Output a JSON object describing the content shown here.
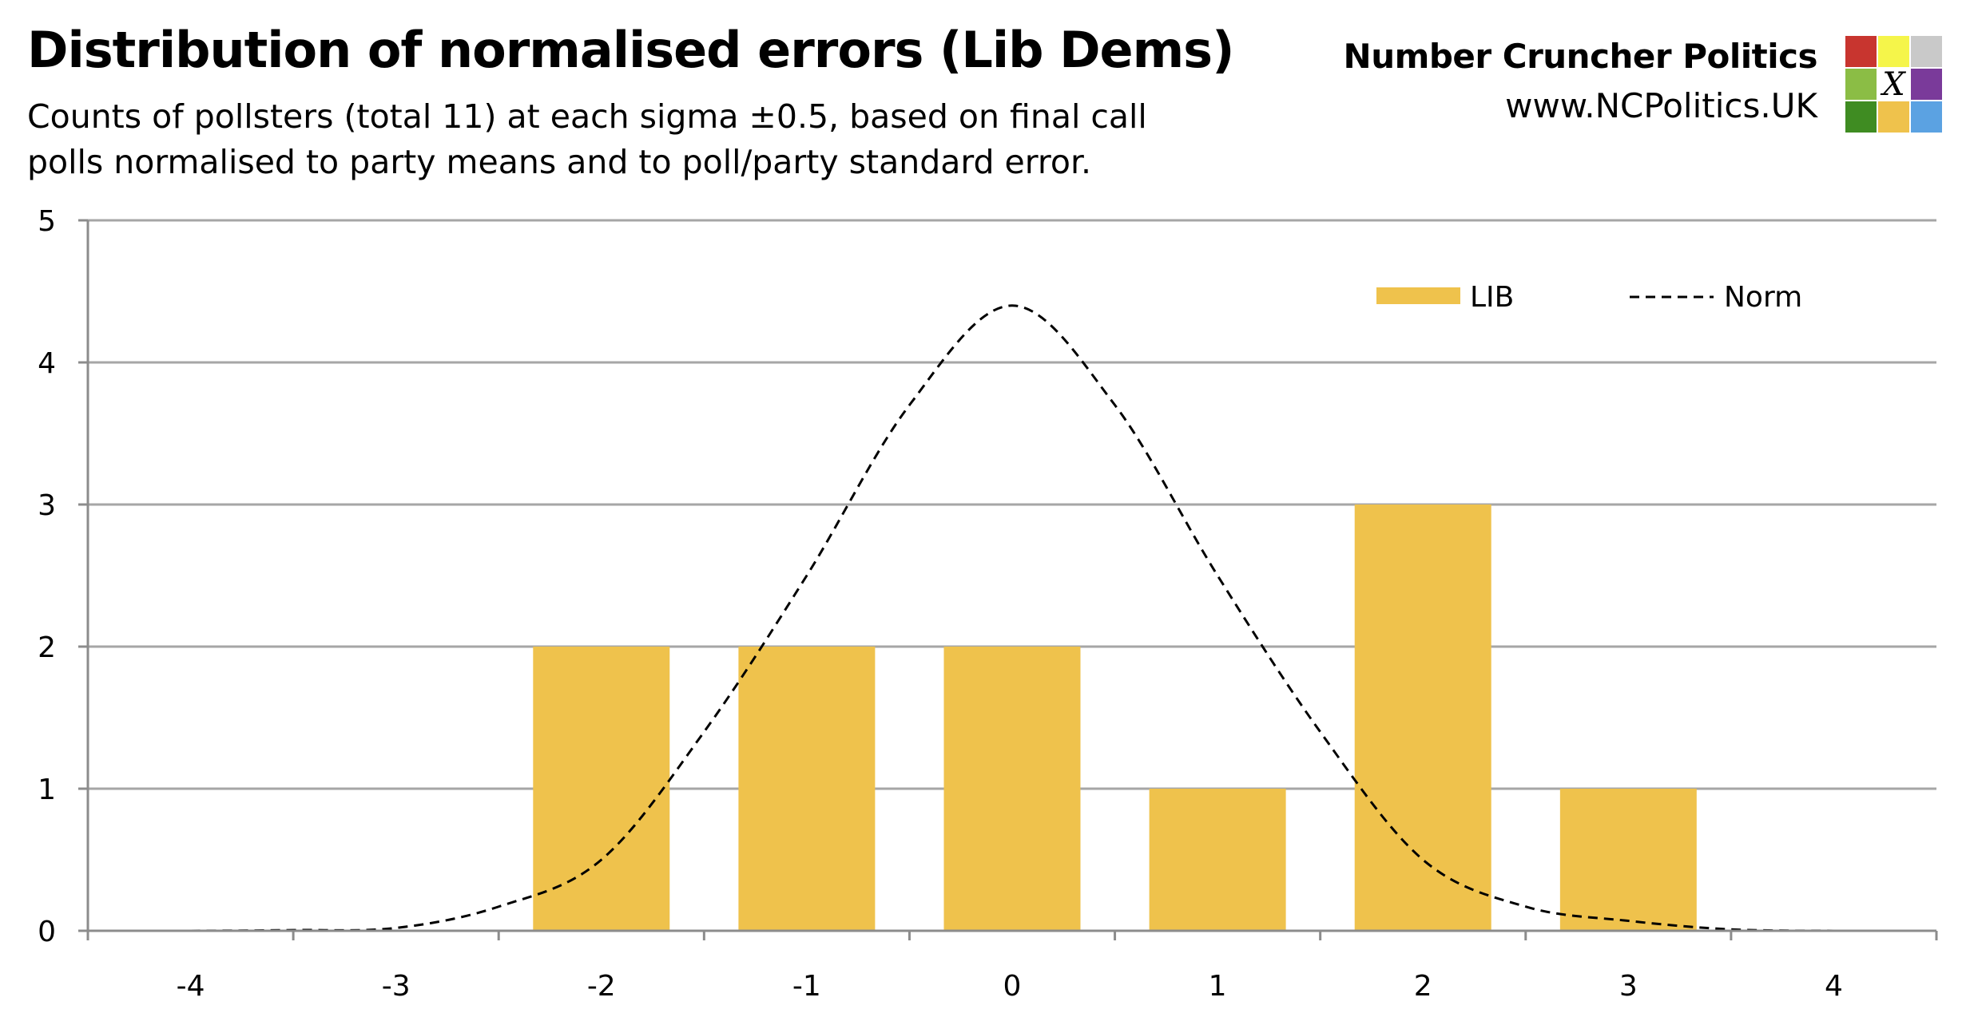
{
  "header": {
    "title": "Distribution of normalised errors (Lib Dems)",
    "subtitle": "Counts of pollsters (total 11) at each sigma ±0.5, based on final call polls normalised to party means and to poll/party standard error."
  },
  "brand": {
    "name": "Number Cruncher Politics",
    "url": "www.NCPolitics.UK",
    "logo_mark": "X",
    "logo_colors": [
      "#c8352f",
      "#f5f54a",
      "#c9c9c9",
      "#8bbd45",
      "#ffffff",
      "#7a3a9a",
      "#3f8c22",
      "#efc24c",
      "#5ba2e2"
    ]
  },
  "chart_data": {
    "type": "bar",
    "categories": [
      "-4",
      "-3",
      "-2",
      "-1",
      "0",
      "1",
      "2",
      "3",
      "4"
    ],
    "x": [
      -4,
      -3,
      -2,
      -1,
      0,
      1,
      2,
      3,
      4
    ],
    "series": [
      {
        "name": "LIB",
        "type": "bar",
        "color": "#efc24c",
        "values": [
          0,
          0,
          2,
          2,
          2,
          1,
          3,
          1,
          0
        ]
      },
      {
        "name": "Norm",
        "type": "line",
        "style": "dashed",
        "color": "#000000",
        "x": [
          -4,
          -3.5,
          -3,
          -2.5,
          -2,
          -1.5,
          -1,
          -0.5,
          0,
          0.5,
          1,
          1.5,
          2,
          2.5,
          3,
          3.5,
          4
        ],
        "values": [
          0.0,
          0.005,
          0.02,
          0.17,
          0.5,
          1.4,
          2.5,
          3.7,
          4.4,
          3.7,
          2.5,
          1.4,
          0.5,
          0.17,
          0.07,
          0.01,
          0.0
        ]
      }
    ],
    "ylim": [
      0,
      5
    ],
    "yticks": [
      "0",
      "1",
      "2",
      "3",
      "4",
      "5"
    ],
    "grid": true,
    "legend": {
      "position": "top-right",
      "entries": [
        "LIB",
        "Norm"
      ]
    }
  }
}
